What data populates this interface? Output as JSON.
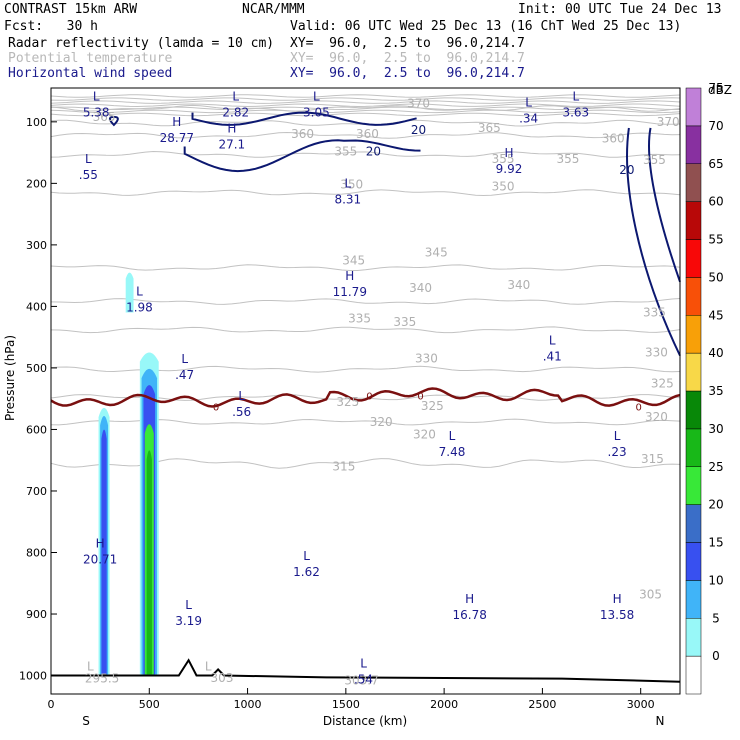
{
  "header": {
    "title": "CONTRAST 15km ARW",
    "center": "NCAR/MMM",
    "init": "Init: 00 UTC Tue 24 Dec 13",
    "fcst": "Fcst:   30 h",
    "valid": "Valid: 06 UTC Wed 25 Dec 13 (16 ChT Wed 25 Dec 13)",
    "fields": [
      {
        "label": "Radar reflectivity (lamda = 10 cm)",
        "xy": "XY=  96.0,  2.5 to  96.0,214.7",
        "color": "#000000"
      },
      {
        "label": "Potential temperature",
        "xy": "XY=  96.0,  2.5 to  96.0,214.7",
        "color": "#b8b8b8"
      },
      {
        "label": "Horizontal wind speed",
        "xy": "XY=  96.0,  2.5 to  96.0,214.7",
        "color": "#1a1a8c"
      }
    ]
  },
  "chart_data": {
    "type": "vertical-cross-section",
    "xlabel": "Distance (km)",
    "ylabel": "Pressure (hPa)",
    "xlim": [
      0,
      3200
    ],
    "ylim": [
      1030,
      45
    ],
    "x_ticks": [
      "0",
      "500",
      "1000",
      "1500",
      "2000",
      "2500",
      "3000"
    ],
    "x_tick_values": [
      0,
      500,
      1000,
      1500,
      2000,
      2500,
      3000
    ],
    "y_ticks": [
      "100",
      "200",
      "300",
      "400",
      "500",
      "600",
      "700",
      "800",
      "900",
      "1000"
    ],
    "y_tick_values": [
      100,
      200,
      300,
      400,
      500,
      600,
      700,
      800,
      900,
      1000
    ],
    "left_end_label": "S",
    "right_end_label": "N",
    "colorbar": {
      "title": "dBZ",
      "levels": [
        "0",
        "5",
        "10",
        "15",
        "20",
        "25",
        "30",
        "35",
        "40",
        "45",
        "50",
        "55",
        "60",
        "65",
        "70",
        "75"
      ],
      "colors": [
        "#ffffff",
        "#98f8f8",
        "#40b4f8",
        "#3850f0",
        "#3a6ec8",
        "#38e838",
        "#18b818",
        "#088808",
        "#f8d848",
        "#f8a008",
        "#f85008",
        "#f80808",
        "#b80808",
        "#905050",
        "#8830a0",
        "#c080d8"
      ]
    },
    "theta_contours": [
      {
        "value": "315",
        "pressure": 655
      },
      {
        "value": "320",
        "pressure": 588
      },
      {
        "value": "325",
        "pressure": 548
      },
      {
        "value": "330",
        "pressure": 502
      },
      {
        "value": "335",
        "pressure": 438
      },
      {
        "value": "340",
        "pressure": 392
      },
      {
        "value": "345",
        "pressure": 337
      },
      {
        "value": "350",
        "pressure": 215
      },
      {
        "value": "355",
        "pressure": 153
      },
      {
        "value": "360",
        "pressure": 122
      },
      {
        "value": "365",
        "pressure": 102
      },
      {
        "value": "370",
        "pressure": 78
      }
    ],
    "theta_labels": [
      {
        "text": "365",
        "x": 270,
        "p": 92
      },
      {
        "text": "360",
        "x": 1280,
        "p": 120
      },
      {
        "text": "360",
        "x": 1610,
        "p": 120
      },
      {
        "text": "365",
        "x": 2230,
        "p": 110
      },
      {
        "text": "370",
        "x": 1870,
        "p": 70
      },
      {
        "text": "370",
        "x": 3140,
        "p": 100
      },
      {
        "text": "360",
        "x": 2860,
        "p": 127
      },
      {
        "text": "355",
        "x": 1500,
        "p": 148
      },
      {
        "text": "355",
        "x": 2300,
        "p": 160
      },
      {
        "text": "355",
        "x": 2630,
        "p": 160
      },
      {
        "text": "355",
        "x": 3070,
        "p": 162
      },
      {
        "text": "350",
        "x": 1530,
        "p": 202
      },
      {
        "text": "350",
        "x": 2300,
        "p": 205
      },
      {
        "text": "345",
        "x": 1540,
        "p": 325
      },
      {
        "text": "345",
        "x": 1960,
        "p": 312
      },
      {
        "text": "340",
        "x": 1880,
        "p": 370
      },
      {
        "text": "340",
        "x": 2380,
        "p": 365
      },
      {
        "text": "335",
        "x": 1570,
        "p": 420
      },
      {
        "text": "335",
        "x": 1800,
        "p": 425
      },
      {
        "text": "335",
        "x": 3070,
        "p": 410
      },
      {
        "text": "330",
        "x": 1910,
        "p": 485
      },
      {
        "text": "330",
        "x": 3080,
        "p": 475
      },
      {
        "text": "325",
        "x": 1510,
        "p": 555
      },
      {
        "text": "325",
        "x": 1940,
        "p": 562
      },
      {
        "text": "325",
        "x": 3110,
        "p": 525
      },
      {
        "text": "320",
        "x": 1680,
        "p": 588
      },
      {
        "text": "320",
        "x": 1900,
        "p": 608
      },
      {
        "text": "320",
        "x": 3080,
        "p": 580
      },
      {
        "text": "315",
        "x": 1490,
        "p": 660
      },
      {
        "text": "315",
        "x": 3060,
        "p": 648
      },
      {
        "text": "305",
        "x": 3050,
        "p": 868
      },
      {
        "text": "295.5",
        "x": 260,
        "p": 1005
      },
      {
        "text": "L",
        "x": 200,
        "p": 985
      },
      {
        "text": "L",
        "x": 800,
        "p": 985
      },
      {
        "text": "303",
        "x": 870,
        "p": 1004
      },
      {
        "text": "303.7",
        "x": 1580,
        "p": 1008
      }
    ],
    "zero_level_labels": [
      {
        "text": "0",
        "x": 840,
        "p": 563
      },
      {
        "text": "0",
        "x": 1620,
        "p": 545
      },
      {
        "text": "0",
        "x": 1880,
        "p": 545
      },
      {
        "text": "0",
        "x": 2990,
        "p": 563
      }
    ],
    "wind_labels": [
      {
        "text": "20",
        "x": 1870,
        "p": 113
      },
      {
        "text": "20",
        "x": 1640,
        "p": 148
      },
      {
        "text": "20",
        "x": 2930,
        "p": 178
      }
    ],
    "extrema": [
      {
        "kind": "L",
        "value": "5.38",
        "x": 230,
        "p": 78
      },
      {
        "kind": "L",
        "value": "2.82",
        "x": 940,
        "p": 78
      },
      {
        "kind": "L",
        "value": "3.05",
        "x": 1350,
        "p": 78
      },
      {
        "kind": "L",
        "value": ".34",
        "x": 2430,
        "p": 88
      },
      {
        "kind": "L",
        "value": "3.63",
        "x": 2670,
        "p": 78
      },
      {
        "kind": "H",
        "value": "28.77",
        "x": 640,
        "p": 120
      },
      {
        "kind": "H",
        "value": "27.1",
        "x": 920,
        "p": 130
      },
      {
        "kind": "L",
        "value": ".55",
        "x": 190,
        "p": 180
      },
      {
        "kind": "H",
        "value": "9.92",
        "x": 2330,
        "p": 170
      },
      {
        "kind": "L",
        "value": "8.31",
        "x": 1510,
        "p": 220
      },
      {
        "kind": "H",
        "value": "11.79",
        "x": 1520,
        "p": 370
      },
      {
        "kind": "L",
        "value": "1.98",
        "x": 450,
        "p": 395
      },
      {
        "kind": "L",
        "value": ".41",
        "x": 2550,
        "p": 475
      },
      {
        "kind": "L",
        "value": ".47",
        "x": 680,
        "p": 505
      },
      {
        "kind": "L",
        "value": ".56",
        "x": 970,
        "p": 565
      },
      {
        "kind": "L",
        "value": "7.48",
        "x": 2040,
        "p": 630
      },
      {
        "kind": "L",
        "value": ".23",
        "x": 2880,
        "p": 630
      },
      {
        "kind": "H",
        "value": "20.71",
        "x": 250,
        "p": 805
      },
      {
        "kind": "L",
        "value": "1.62",
        "x": 1300,
        "p": 825
      },
      {
        "kind": "L",
        "value": "3.19",
        "x": 700,
        "p": 905
      },
      {
        "kind": "H",
        "value": "16.78",
        "x": 2130,
        "p": 895
      },
      {
        "kind": "H",
        "value": "13.58",
        "x": 2880,
        "p": 895
      },
      {
        "kind": "L",
        "value": ".54",
        "x": 1590,
        "p": 1000
      }
    ]
  }
}
